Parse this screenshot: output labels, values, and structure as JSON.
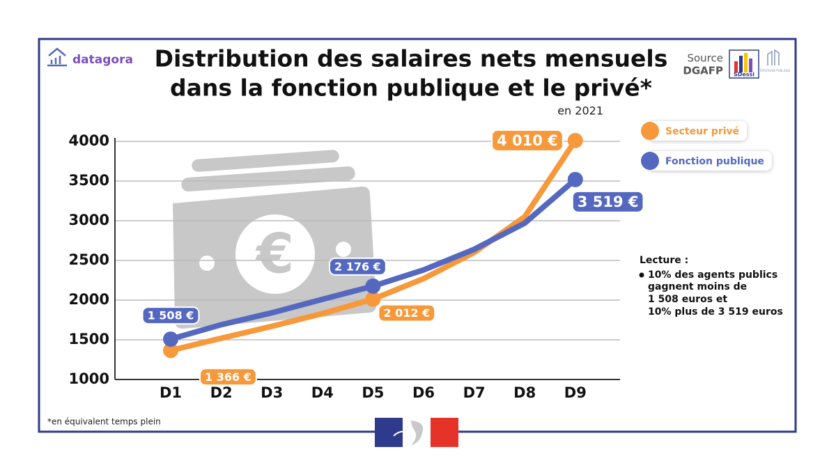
{
  "brand": "datagora",
  "source": {
    "label": "Source",
    "name": "DGAFP",
    "logo1": "SDessi",
    "logo2": "STATISTIQUE PUBLIQUE"
  },
  "lecture": {
    "title": "Lecture :",
    "lines": [
      "10% des agents publics",
      "gagnent moins de",
      "1 508 euros et",
      "10% plus de 3 519 euros"
    ]
  },
  "footnote": "*en équivalent temps plein",
  "chart_data": {
    "type": "line",
    "title": [
      "Distribution des salaires nets mensuels",
      "dans la fonction publique et le privé*"
    ],
    "subtitle": "en 2021",
    "categories": [
      "D1",
      "D2",
      "D3",
      "D4",
      "D5",
      "D6",
      "D7",
      "D8",
      "D9"
    ],
    "series": [
      {
        "name": "Secteur privé",
        "color": "#f7983a",
        "values": [
          1366,
          1520,
          1670,
          1830,
          2012,
          2270,
          2600,
          3050,
          4010
        ],
        "value_labels": [
          "1 366 €",
          null,
          null,
          null,
          "2 012 €",
          null,
          null,
          null,
          "4 010 €"
        ]
      },
      {
        "name": "Fonction publique",
        "color": "#5468c0",
        "values": [
          1508,
          1690,
          1840,
          2010,
          2176,
          2380,
          2640,
          2970,
          3519
        ],
        "value_labels": [
          "1 508 €",
          null,
          null,
          null,
          "2 176 €",
          null,
          null,
          null,
          "3 519 €"
        ]
      }
    ],
    "ylim": [
      1000,
      4000
    ],
    "yticks": [
      1000,
      1500,
      2000,
      2500,
      3000,
      3500,
      4000
    ],
    "grid": true
  }
}
